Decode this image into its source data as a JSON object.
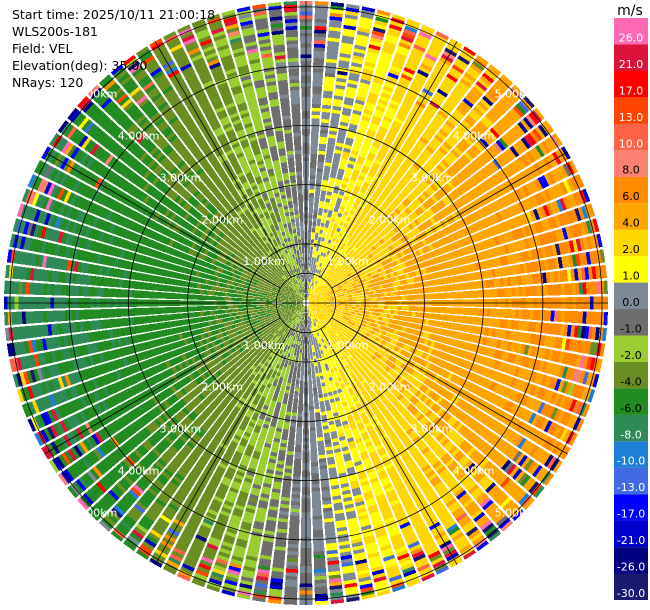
{
  "info": {
    "start_time": "Start time: 2025/10/11 21:00:18",
    "instrument": "WLS200s-181",
    "field": "Field: VEL",
    "elevation": "Elevation(deg): 35.00",
    "nrays": "NRays: 120"
  },
  "chart_data": {
    "type": "heatmap",
    "projection": "polar-ppi",
    "field": "VEL",
    "units": "m/s",
    "nrays": 120,
    "max_range_km": 5.1,
    "range_ring_labels": [
      "1.00km",
      "2.00km",
      "3.00km",
      "4.00km",
      "5.00km"
    ],
    "range_rings_km": [
      1,
      2,
      3,
      4,
      5
    ],
    "colorbar": {
      "title": "m/s",
      "tick_labels": [
        "-30.0",
        "-26.0",
        "-21.0",
        "-17.0",
        "-13.0",
        "-10.0",
        "-8.0",
        "-6.0",
        "-4.0",
        "-2.0",
        "-1.0",
        "0.0",
        "1.0",
        "2.0",
        "4.0",
        "6.0",
        "8.0",
        "10.0",
        "13.0",
        "17.0",
        "21.0",
        "26.0"
      ],
      "bounds": [
        -30,
        -26,
        -21,
        -17,
        -13,
        -10,
        -8,
        -6,
        -4,
        -2,
        -1,
        0,
        1,
        2,
        4,
        6,
        8,
        10,
        13,
        17,
        21,
        26,
        30
      ],
      "colors": [
        "#191970",
        "#000080",
        "#0000cd",
        "#0000ff",
        "#4169e1",
        "#1e7fd6",
        "#2e8b57",
        "#228b22",
        "#6b8e23",
        "#9acd32",
        "#6e6e6e",
        "#7d8a96",
        "#ffff00",
        "#ffd700",
        "#ffa500",
        "#ff8c00",
        "#fa8072",
        "#ff6347",
        "#ff4500",
        "#ff0000",
        "#dc143c",
        "#ff69b4"
      ]
    },
    "wind_model": {
      "approx_speed_ms": 6,
      "negative_toward": "west (left half of display)",
      "positive_toward": "east (right half of display)",
      "zero_line": "north-south through center"
    }
  }
}
